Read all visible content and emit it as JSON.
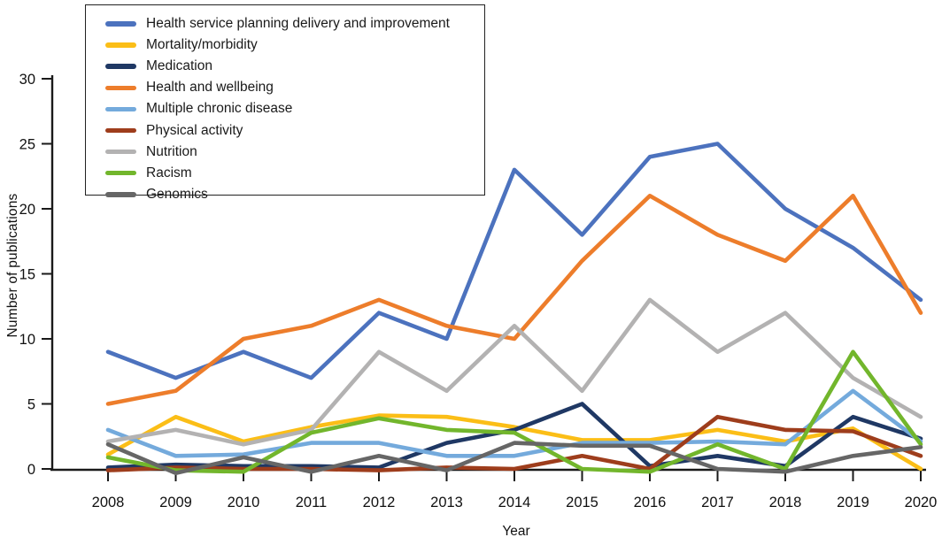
{
  "chart_data": {
    "type": "line",
    "title": "",
    "xlabel": "Year",
    "ylabel": "Number of publications",
    "x": [
      2008,
      2009,
      2010,
      2011,
      2012,
      2013,
      2014,
      2015,
      2016,
      2017,
      2018,
      2019,
      2020
    ],
    "ylim": [
      0,
      30
    ],
    "yticks": [
      0,
      5,
      10,
      15,
      20,
      25,
      30
    ],
    "grid": false,
    "legend_position": "top-left-inside",
    "axis_color": "#1a1a1a",
    "series": [
      {
        "name": "Health service planning delivery and improvement",
        "color": "#4C72BE",
        "values": [
          9,
          7,
          9,
          7,
          12,
          10,
          23,
          18,
          24,
          25,
          20,
          17,
          13
        ]
      },
      {
        "name": "Mortality/morbidity",
        "color": "#FBBE17",
        "values": [
          1,
          4,
          2,
          3,
          4,
          4,
          3,
          2,
          2,
          3,
          2,
          3,
          0
        ]
      },
      {
        "name": "Medication",
        "color": "#1F3864",
        "values": [
          0,
          0,
          0,
          0,
          0,
          2,
          3,
          5,
          0,
          1,
          0,
          4,
          2
        ]
      },
      {
        "name": "Health and wellbeing",
        "color": "#ED7D2B",
        "values": [
          5,
          6,
          10,
          11,
          13,
          11,
          10,
          16,
          21,
          18,
          16,
          21,
          12
        ]
      },
      {
        "name": "Multiple chronic disease",
        "color": "#74AADC",
        "values": [
          3,
          1,
          1,
          2,
          2,
          1,
          1,
          2,
          2,
          2,
          2,
          6,
          2
        ]
      },
      {
        "name": "Physical activity",
        "color": "#9E3D1C",
        "values": [
          0,
          0,
          0,
          0,
          0,
          0,
          0,
          1,
          0,
          4,
          3,
          3,
          1
        ]
      },
      {
        "name": "Nutrition",
        "color": "#B3B2B2",
        "values": [
          2,
          3,
          2,
          3,
          9,
          6,
          11,
          6,
          13,
          9,
          12,
          7,
          4
        ]
      },
      {
        "name": "Racism",
        "color": "#72B62C",
        "values": [
          1,
          0,
          0,
          3,
          4,
          3,
          3,
          0,
          0,
          2,
          0,
          9,
          2
        ]
      },
      {
        "name": "Genomics",
        "color": "#666666",
        "values": [
          2,
          0,
          1,
          0,
          1,
          0,
          2,
          2,
          2,
          0,
          0,
          1,
          2
        ]
      }
    ]
  }
}
